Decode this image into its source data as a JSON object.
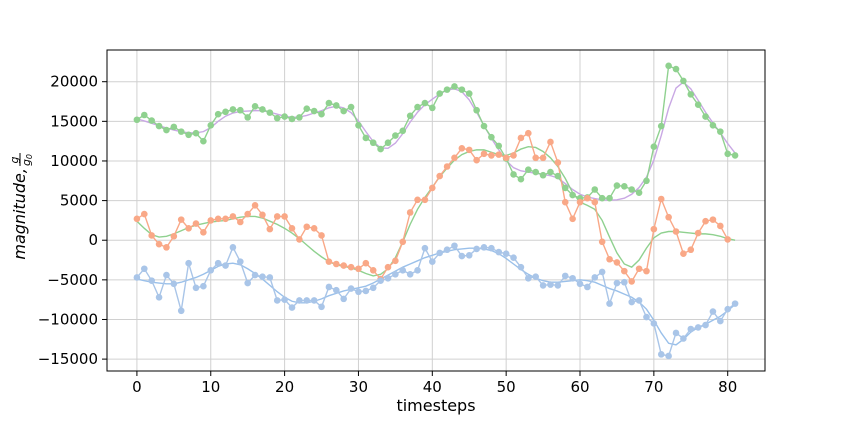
{
  "chart_data": {
    "type": "line",
    "title": "",
    "xlabel": "timesteps",
    "ylabel": "magnitude,",
    "ylabel_fraction": {
      "numerator": "g",
      "denominator": "g",
      "denominator_sub": "0"
    },
    "xlim": [
      -4.05,
      85.05
    ],
    "ylim": [
      -16500,
      24000
    ],
    "x_ticks": [
      0,
      10,
      20,
      30,
      40,
      50,
      60,
      70,
      80
    ],
    "x_tick_labels": [
      "0",
      "10",
      "20",
      "30",
      "40",
      "50",
      "60",
      "70",
      "80"
    ],
    "y_ticks": [
      -15000,
      -10000,
      -5000,
      0,
      5000,
      10000,
      15000,
      20000
    ],
    "y_tick_labels": [
      "−15000",
      "−10000",
      "−5000",
      "0",
      "5000",
      "10000",
      "15000",
      "20000"
    ],
    "grid": true,
    "series": [
      {
        "color": "#8fd18f",
        "smooth_color": "#c9a8e4",
        "values": [
          15200,
          15800,
          15100,
          14400,
          13900,
          14300,
          13700,
          13300,
          13500,
          12500,
          14500,
          15900,
          16200,
          16500,
          16400,
          15500,
          16900,
          16500,
          16100,
          15400,
          15600,
          15300,
          15500,
          16600,
          16300,
          15900,
          17300,
          17000,
          16300,
          16800,
          14500,
          12900,
          12300,
          11500,
          12300,
          13200,
          13800,
          15700,
          16800,
          17300,
          16700,
          18500,
          19000,
          19400,
          19000,
          18500,
          16400,
          14400,
          13000,
          11900,
          10300,
          8300,
          7700,
          8900,
          8600,
          8200,
          8600,
          8100,
          6600,
          5700,
          5300,
          5400,
          6400,
          5300,
          5300,
          6900,
          6800,
          6400,
          6000,
          7500,
          11800,
          14400,
          22000,
          21600,
          20100,
          18400,
          17100,
          15600,
          14500,
          13700,
          10900,
          10700
        ],
        "smooth": [
          15300,
          15050,
          14750,
          14450,
          14150,
          13900,
          13700,
          13550,
          13550,
          13700,
          14200,
          15000,
          15650,
          16050,
          16250,
          16300,
          16350,
          16350,
          16150,
          15900,
          15650,
          15500,
          15550,
          15750,
          16050,
          16350,
          16700,
          16900,
          16700,
          16100,
          15050,
          13700,
          12450,
          11650,
          11600,
          12250,
          13450,
          14900,
          16150,
          17100,
          17800,
          18450,
          18950,
          19100,
          18750,
          17700,
          16150,
          14450,
          12850,
          11400,
          10050,
          9150,
          8750,
          8600,
          8450,
          8300,
          8150,
          7850,
          7150,
          6400,
          5800,
          5450,
          5250,
          5100,
          5050,
          5100,
          5300,
          5800,
          6650,
          7950,
          10100,
          13200,
          16650,
          19200,
          19950,
          19100,
          17650,
          16150,
          14800,
          13550,
          12200,
          11000
        ]
      },
      {
        "color": "#f9a887",
        "smooth_color": "#8fd18f",
        "values": [
          2700,
          3300,
          600,
          -500,
          -900,
          500,
          2600,
          1500,
          2100,
          1000,
          2500,
          2700,
          2700,
          3000,
          2300,
          3300,
          4400,
          3200,
          1400,
          3000,
          3000,
          1500,
          100,
          1700,
          1500,
          600,
          -2700,
          -3000,
          -3200,
          -3400,
          -3600,
          -2900,
          -3800,
          -4900,
          -3400,
          -2600,
          -200,
          3500,
          5100,
          5100,
          6600,
          8100,
          9300,
          10400,
          11600,
          11400,
          10100,
          10900,
          10700,
          10800,
          10400,
          10700,
          12900,
          13500,
          10400,
          10400,
          12400,
          9800,
          4800,
          2700,
          4800,
          5300,
          4800,
          -200,
          -2400,
          -2800,
          -3900,
          -5200,
          -3600,
          -3900,
          1400,
          5200,
          2900,
          1100,
          -1700,
          -1200,
          900,
          2400,
          2600,
          1800,
          100
        ],
        "smooth": [
          2400,
          1500,
          700,
          400,
          500,
          800,
          1200,
          1600,
          1900,
          2100,
          2300,
          2400,
          2500,
          2700,
          2900,
          3000,
          3000,
          2800,
          2400,
          2000,
          1500,
          900,
          200,
          -600,
          -1400,
          -2100,
          -2700,
          -3100,
          -3300,
          -3500,
          -3800,
          -4200,
          -4500,
          -4300,
          -3600,
          -2200,
          -200,
          2000,
          3900,
          5400,
          6700,
          8000,
          9100,
          10100,
          10800,
          11200,
          11400,
          11400,
          11100,
          10800,
          10700,
          11000,
          11500,
          11800,
          11700,
          11200,
          10400,
          9300,
          7800,
          6000,
          4800,
          4400,
          3900,
          2500,
          400,
          -1600,
          -3000,
          -3400,
          -2500,
          -1000,
          300,
          900,
          1100,
          1100,
          1000,
          900,
          800,
          800,
          700,
          500,
          200,
          0
        ]
      },
      {
        "color": "#a9c5e8",
        "smooth_color": "#9ac0ea",
        "values": [
          -4700,
          -3600,
          -5100,
          -7200,
          -4400,
          -5500,
          -8900,
          -2900,
          -6000,
          -5800,
          -3800,
          -2900,
          -3200,
          -900,
          -2700,
          -5400,
          -4400,
          -4600,
          -4700,
          -7600,
          -7500,
          -8500,
          -7600,
          -7600,
          -7600,
          -8400,
          -5900,
          -6300,
          -7400,
          -6100,
          -6500,
          -6400,
          -6000,
          -5100,
          -4800,
          -4300,
          -3800,
          -4300,
          -3800,
          -1000,
          -2700,
          -1600,
          -1200,
          -700,
          -2000,
          -1900,
          -1100,
          -900,
          -1000,
          -1500,
          -1700,
          -2200,
          -3400,
          -4800,
          -4600,
          -5700,
          -5600,
          -5700,
          -4500,
          -4800,
          -5500,
          -5900,
          -4700,
          -4000,
          -8000,
          -5400,
          -5300,
          -7800,
          -7600,
          -9700,
          -10500,
          -14400,
          -14600,
          -11700,
          -12400,
          -11200,
          -11000,
          -10700,
          -9000,
          -10200,
          -8700,
          -8000
        ],
        "smooth": [
          -4900,
          -5100,
          -5300,
          -5400,
          -5500,
          -5500,
          -5300,
          -5000,
          -4700,
          -4300,
          -3800,
          -3300,
          -3000,
          -2900,
          -3100,
          -3600,
          -4200,
          -4900,
          -5700,
          -6500,
          -7200,
          -7700,
          -7900,
          -7900,
          -7700,
          -7400,
          -7000,
          -6700,
          -6400,
          -6200,
          -6000,
          -5800,
          -5400,
          -4900,
          -4400,
          -3900,
          -3400,
          -3000,
          -2600,
          -2200,
          -1900,
          -1600,
          -1400,
          -1200,
          -1100,
          -1000,
          -1000,
          -1100,
          -1300,
          -1700,
          -2300,
          -3000,
          -3700,
          -4300,
          -4800,
          -5100,
          -5300,
          -5300,
          -5200,
          -5100,
          -5000,
          -5100,
          -5300,
          -5700,
          -6100,
          -6400,
          -6800,
          -7200,
          -7800,
          -8700,
          -10100,
          -11700,
          -13000,
          -13200,
          -12500,
          -11600,
          -11000,
          -10600,
          -10100,
          -9600,
          -8900,
          -8100
        ]
      }
    ]
  }
}
